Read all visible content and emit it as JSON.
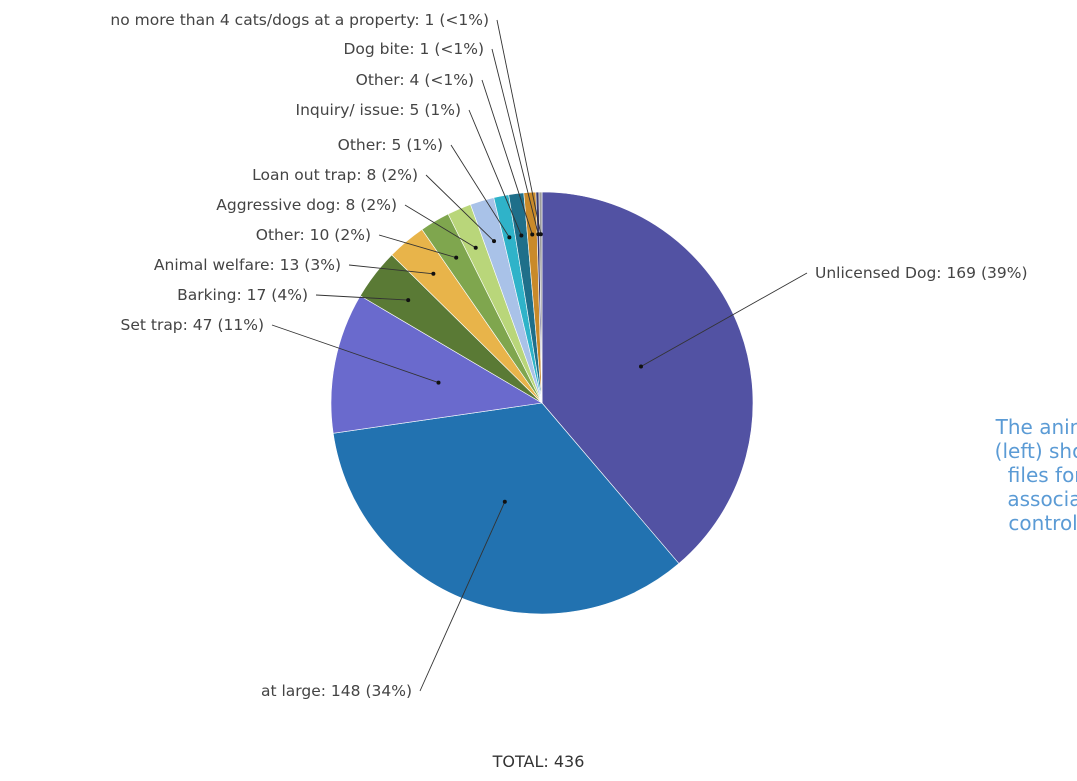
{
  "chart_data": {
    "type": "pie",
    "total": 436,
    "total_label": "TOTAL: 436",
    "slices": [
      {
        "category": "Unlicensed Dog",
        "value": 169,
        "pct": "39%",
        "color": "#5252a3",
        "label": "Unlicensed Dog: 169 (39%)"
      },
      {
        "category": "at large",
        "value": 148,
        "pct": "34%",
        "color": "#2272b0",
        "label": "at large: 148 (34%)"
      },
      {
        "category": "Set trap",
        "value": 47,
        "pct": "11%",
        "color": "#6a6acd",
        "label": "Set trap: 47 (11%)"
      },
      {
        "category": "Barking",
        "value": 17,
        "pct": "4%",
        "color": "#5a7a35",
        "label": "Barking: 17 (4%)"
      },
      {
        "category": "Animal welfare",
        "value": 13,
        "pct": "3%",
        "color": "#e8b44a",
        "label": "Animal welfare: 13 (3%)"
      },
      {
        "category": "Other",
        "value": 10,
        "pct": "2%",
        "color": "#7fa64e",
        "label": "Other: 10 (2%)"
      },
      {
        "category": "Aggressive dog",
        "value": 8,
        "pct": "2%",
        "color": "#b9d67a",
        "label": "Aggressive dog: 8 (2%)"
      },
      {
        "category": "Loan out trap",
        "value": 8,
        "pct": "2%",
        "color": "#a9c2e8",
        "label": "Loan out trap: 8 (2%)"
      },
      {
        "category": "Other",
        "value": 5,
        "pct": "1%",
        "color": "#2fb3c9",
        "label": "Other: 5 (1%)"
      },
      {
        "category": "Inquiry/ issue",
        "value": 5,
        "pct": "1%",
        "color": "#1f6f8a",
        "label": "Inquiry/ issue: 5 (1%)"
      },
      {
        "category": "Other",
        "value": 4,
        "pct": "<1%",
        "color": "#c98a2a",
        "label": "Other: 4 (<1%)"
      },
      {
        "category": "Dog bite",
        "value": 1,
        "pct": "<1%",
        "color": "#3b3b70",
        "label": "Dog bite: 1 (<1%)"
      },
      {
        "category": "no more than 4 cats/dogs at a property",
        "value": 1,
        "pct": "<1%",
        "color": "#9c9c9c",
        "label": "no more than 4 cats/dogs at a property: 1 (<1%)"
      }
    ]
  },
  "side_text": {
    "line1": "The animal c",
    "line2": "(left) shows t",
    "line3": "files for ec",
    "line4": "associatec",
    "line5": "control for"
  }
}
